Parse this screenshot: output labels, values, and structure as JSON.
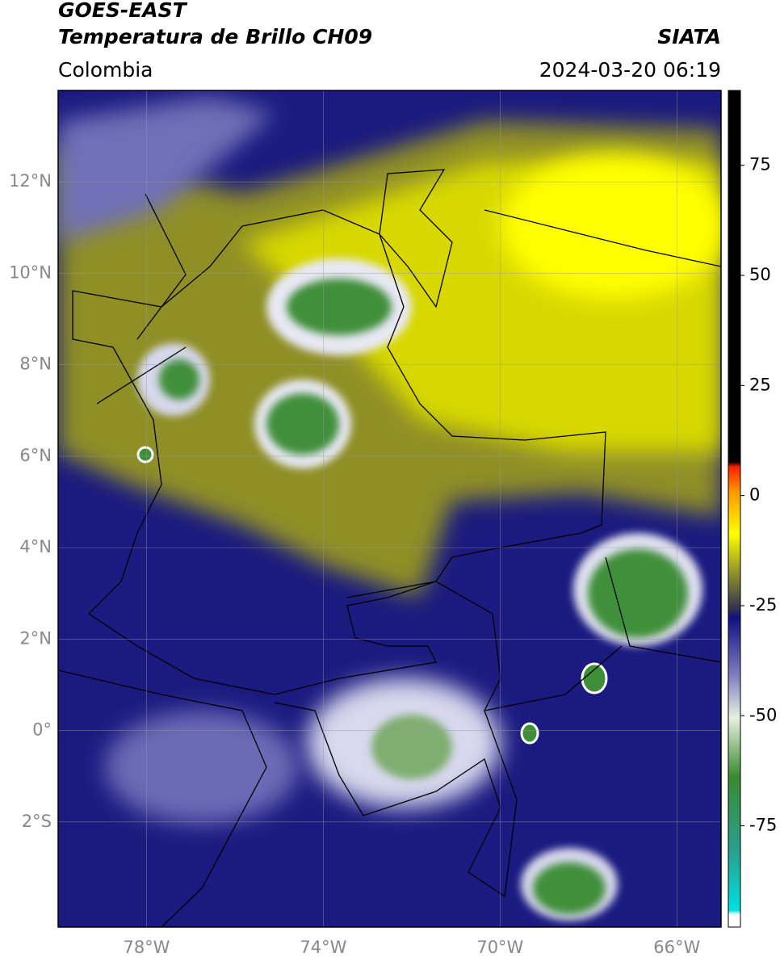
{
  "header": {
    "title_line1": "GOES-EAST",
    "title_line2": "Temperatura de Brillo CH09",
    "region": "Colombia",
    "source": "SIATA",
    "datetime": "2024-03-20 06:19"
  },
  "map": {
    "lat_ticks": [
      {
        "value": 12,
        "label": "12°N"
      },
      {
        "value": 10,
        "label": "10°N"
      },
      {
        "value": 8,
        "label": "8°N"
      },
      {
        "value": 6,
        "label": "6°N"
      },
      {
        "value": 4,
        "label": "4°N"
      },
      {
        "value": 2,
        "label": "2°N"
      },
      {
        "value": 0,
        "label": "0°"
      },
      {
        "value": -2,
        "label": "2°S"
      }
    ],
    "lon_ticks": [
      {
        "value": -78,
        "label": "78°W"
      },
      {
        "value": -74,
        "label": "74°W"
      },
      {
        "value": -70,
        "label": "70°W"
      },
      {
        "value": -66,
        "label": "66°W"
      }
    ],
    "lat_range": [
      -4.3,
      14
    ],
    "lon_range": [
      -80,
      -65
    ],
    "colorbar": {
      "lim": [
        -98,
        92
      ],
      "ticks": [
        75,
        50,
        25,
        0,
        -25,
        -50,
        -75
      ]
    }
  }
}
